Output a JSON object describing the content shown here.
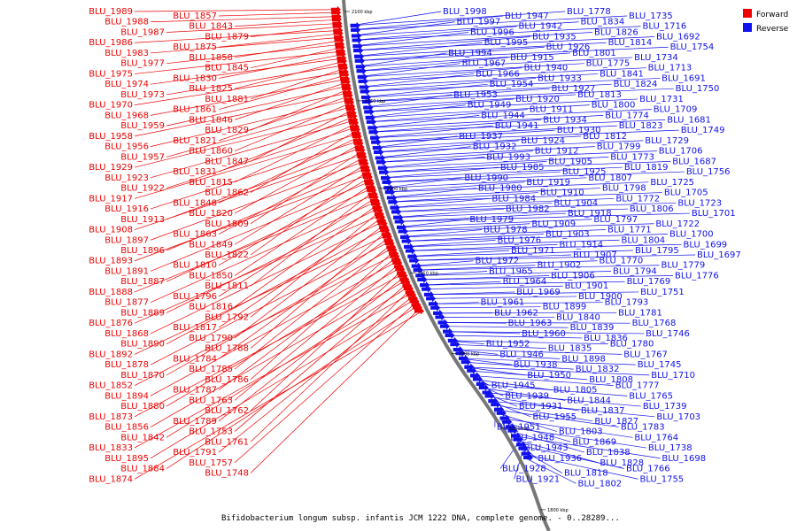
{
  "caption": "Bifidobacterium longum subsp. infantis JCM 1222 DNA, complete genome. - 0..28289...",
  "colors": {
    "forward": "#ee0000",
    "reverse": "#1111ee",
    "backbone": "#777777"
  },
  "legend": {
    "forward": "Forward",
    "reverse": "Reverse"
  },
  "ticks": [
    "2100 kbp",
    "2050 kbp",
    "2000 kbp",
    "1950 kbp",
    "1900 kbp",
    "1850 kbp",
    "1800 kbp"
  ],
  "forward_genes": [
    "BLU_1989",
    "BLU_1988",
    "BLU_1987",
    "BLU_1986",
    "BLU_1983",
    "BLU_1977",
    "BLU_1975",
    "BLU_1974",
    "BLU_1973",
    "BLU_1970",
    "BLU_1968",
    "BLU_1959",
    "BLU_1958",
    "BLU_1956",
    "BLU_1957",
    "BLU_1929",
    "BLU_1923",
    "BLU_1922",
    "BLU_1917",
    "BLU_1916",
    "BLU_1913",
    "BLU_1908",
    "BLU_1897",
    "BLU_1896",
    "BLU_1893",
    "BLU_1891",
    "BLU_1887",
    "BLU_1888",
    "BLU_1877",
    "BLU_1889",
    "BLU_1876",
    "BLU_1868",
    "BLU_1890",
    "BLU_1892",
    "BLU_1878",
    "BLU_1870",
    "BLU_1852",
    "BLU_1894",
    "BLU_1880",
    "BLU_1873",
    "BLU_1856",
    "BLU_1842",
    "BLU_1833",
    "BLU_1895",
    "BLU_1884",
    "BLU_1874",
    "BLU_1857",
    "BLU_1843",
    "BLU_1879",
    "BLU_1875",
    "BLU_1858",
    "BLU_1845",
    "BLU_1830",
    "BLU_1825",
    "BLU_1881",
    "BLU_1861",
    "BLU_1846",
    "BLU_1829",
    "BLU_1821",
    "BLU_1860",
    "BLU_1847",
    "BLU_1831",
    "BLU_1815",
    "BLU_1862",
    "BLU_1848",
    "BLU_1820",
    "BLU_1809",
    "BLU_1863",
    "BLU_1849",
    "BLU_1822",
    "BLU_1810",
    "BLU_1850",
    "BLU_1811",
    "BLU_1796",
    "BLU_1816",
    "BLU_1792",
    "BLU_1817",
    "BLU_1790",
    "BLU_1788",
    "BLU_1784",
    "BLU_1785",
    "BLU_1786",
    "BLU_1787",
    "BLU_1763",
    "BLU_1762",
    "BLU_1789",
    "BLU_1753",
    "BLU_1761",
    "BLU_1791",
    "BLU_1757",
    "BLU_1748"
  ],
  "reverse_genes": [
    "BLU_1998",
    "BLU_1997",
    "BLU_1996",
    "BLU_1995",
    "BLU_1994",
    "BLU_1967",
    "BLU_1966",
    "BLU_1954",
    "BLU_1953",
    "BLU_1949",
    "BLU_1944",
    "BLU_1941",
    "BLU_1937",
    "BLU_1932",
    "BLU_1993",
    "BLU_1985",
    "BLU_1990",
    "BLU_1980",
    "BLU_1984",
    "BLU_1982",
    "BLU_1979",
    "BLU_1978",
    "BLU_1976",
    "BLU_1971",
    "BLU_1972",
    "BLU_1965",
    "BLU_1964",
    "BLU_1969",
    "BLU_1961",
    "BLU_1962",
    "BLU_1963",
    "BLU_1960",
    "BLU_1952",
    "BLU_1946",
    "BLU_1938",
    "BLU_1950",
    "BLU_1945",
    "BLU_1939",
    "BLU_1931",
    "BLU_1955",
    "BLU_1951",
    "BLU_1948",
    "BLU_1943",
    "BLU_1936",
    "BLU_1928",
    "BLU_1921",
    "BLU_1947",
    "BLU_1942",
    "BLU_1935",
    "BLU_1926",
    "BLU_1915",
    "BLU_1940",
    "BLU_1933",
    "BLU_1927",
    "BLU_1920",
    "BLU_1911",
    "BLU_1934",
    "BLU_1930",
    "BLU_1924",
    "BLU_1912",
    "BLU_1905",
    "BLU_1925",
    "BLU_1919",
    "BLU_1910",
    "BLU_1904",
    "BLU_1918",
    "BLU_1909",
    "BLU_1903",
    "BLU_1914",
    "BLU_1907",
    "BLU_1902",
    "BLU_1906",
    "BLU_1901",
    "BLU_1900",
    "BLU_1899",
    "BLU_1840",
    "BLU_1839",
    "BLU_1836",
    "BLU_1835",
    "BLU_1898",
    "BLU_1832",
    "BLU_1808",
    "BLU_1805",
    "BLU_1844",
    "BLU_1837",
    "BLU_1827",
    "BLU_1803",
    "BLU_1869",
    "BLU_1838",
    "BLU_1828",
    "BLU_1818",
    "BLU_1802",
    "BLU_1778",
    "BLU_1834",
    "BLU_1826",
    "BLU_1814",
    "BLU_1801",
    "BLU_1775",
    "BLU_1841",
    "BLU_1824",
    "BLU_1813",
    "BLU_1800",
    "BLU_1774",
    "BLU_1823",
    "BLU_1812",
    "BLU_1799",
    "BLU_1773",
    "BLU_1819",
    "BLU_1807",
    "BLU_1798",
    "BLU_1772",
    "BLU_1806",
    "BLU_1797",
    "BLU_1771",
    "BLU_1804",
    "BLU_1795",
    "BLU_1770",
    "BLU_1794",
    "BLU_1769",
    "BLU_1751",
    "BLU_1793",
    "BLU_1781",
    "BLU_1768",
    "BLU_1746",
    "BLU_1780",
    "BLU_1767",
    "BLU_1745",
    "BLU_1710",
    "BLU_1777",
    "BLU_1765",
    "BLU_1739",
    "BLU_1703",
    "BLU_1783",
    "BLU_1764",
    "BLU_1738",
    "BLU_1698",
    "BLU_1766",
    "BLU_1755",
    "BLU_1735",
    "BLU_1716",
    "BLU_1692",
    "BLU_1754",
    "BLU_1734",
    "BLU_1713",
    "BLU_1691",
    "BLU_1750",
    "BLU_1731",
    "BLU_1709",
    "BLU_1681",
    "BLU_1749",
    "BLU_1729",
    "BLU_1706",
    "BLU_1687",
    "BLU_1756",
    "BLU_1725",
    "BLU_1705",
    "BLU_1723",
    "BLU_1701",
    "BLU_1722",
    "BLU_1700",
    "BLU_1699",
    "BLU_1697",
    "BLU_1779",
    "BLU_1776"
  ]
}
